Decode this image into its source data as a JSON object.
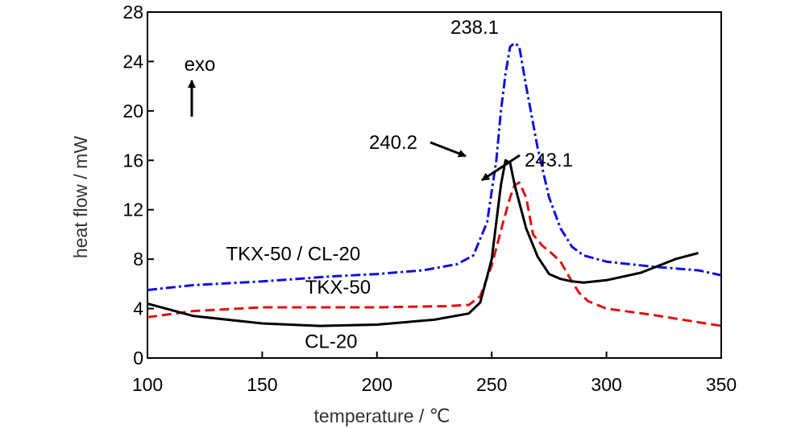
{
  "chart_data": {
    "type": "line",
    "xlabel": "temperature / ℃",
    "ylabel": "heat flow / mW",
    "xlim": [
      100,
      350
    ],
    "ylim": [
      0,
      28
    ],
    "x_ticks": [
      100,
      150,
      200,
      250,
      300,
      350
    ],
    "y_ticks": [
      0,
      4,
      8,
      12,
      16,
      20,
      24,
      28
    ],
    "grid": false,
    "series": [
      {
        "name": "TKX-50 / CL-20",
        "color": "#1010e0",
        "style": "dash-dot",
        "points": [
          [
            100,
            5.5
          ],
          [
            120,
            5.9
          ],
          [
            150,
            6.2
          ],
          [
            180,
            6.6
          ],
          [
            200,
            6.8
          ],
          [
            220,
            7.1
          ],
          [
            235,
            7.6
          ],
          [
            242,
            8.3
          ],
          [
            248,
            11
          ],
          [
            252,
            16
          ],
          [
            254,
            20
          ],
          [
            256,
            23
          ],
          [
            258,
            25.2
          ],
          [
            260,
            25.5
          ],
          [
            262,
            25.2
          ],
          [
            265,
            22
          ],
          [
            270,
            17
          ],
          [
            275,
            13
          ],
          [
            280,
            10.5
          ],
          [
            285,
            9
          ],
          [
            290,
            8.3
          ],
          [
            300,
            7.8
          ],
          [
            320,
            7.4
          ],
          [
            340,
            7.1
          ],
          [
            350,
            6.7
          ]
        ]
      },
      {
        "name": "TKX-50",
        "color": "#e01010",
        "style": "dashed",
        "points": [
          [
            100,
            3.3
          ],
          [
            120,
            3.8
          ],
          [
            150,
            4.1
          ],
          [
            200,
            4.1
          ],
          [
            230,
            4.2
          ],
          [
            240,
            4.3
          ],
          [
            245,
            5
          ],
          [
            250,
            7.5
          ],
          [
            255,
            11
          ],
          [
            258,
            13
          ],
          [
            260,
            14
          ],
          [
            262,
            14.2
          ],
          [
            265,
            13
          ],
          [
            268,
            10
          ],
          [
            272,
            9.1
          ],
          [
            276,
            8.5
          ],
          [
            280,
            7.8
          ],
          [
            284,
            6.5
          ],
          [
            288,
            5.3
          ],
          [
            292,
            4.6
          ],
          [
            300,
            4
          ],
          [
            320,
            3.5
          ],
          [
            340,
            2.9
          ],
          [
            350,
            2.6
          ]
        ]
      },
      {
        "name": "CL-20",
        "color": "#000000",
        "style": "solid",
        "points": [
          [
            100,
            4.4
          ],
          [
            120,
            3.4
          ],
          [
            150,
            2.8
          ],
          [
            175,
            2.6
          ],
          [
            200,
            2.7
          ],
          [
            225,
            3.1
          ],
          [
            240,
            3.6
          ],
          [
            245,
            4.5
          ],
          [
            250,
            8
          ],
          [
            254,
            14
          ],
          [
            256,
            16
          ],
          [
            258,
            15.8
          ],
          [
            260,
            14
          ],
          [
            265,
            10.5
          ],
          [
            270,
            8.2
          ],
          [
            275,
            6.8
          ],
          [
            280,
            6.4
          ],
          [
            285,
            6.2
          ],
          [
            290,
            6.1
          ],
          [
            300,
            6.3
          ],
          [
            315,
            6.9
          ],
          [
            330,
            8
          ],
          [
            340,
            8.5
          ]
        ]
      }
    ],
    "annotations": [
      {
        "text": "238.1",
        "x": 262,
        "y": 26.9
      },
      {
        "text": "240.2",
        "x": 245,
        "y": 17.7
      },
      {
        "text": "243.1",
        "x": 298,
        "y": 16.2
      }
    ],
    "labels": {
      "exo": "exo",
      "series_labels": [
        {
          "text": "TKX-50 / CL-20",
          "x": 163.5,
          "y": 7.9
        },
        {
          "text": "TKX-50",
          "x": 183,
          "y": 5.2
        },
        {
          "text": "CL-20",
          "x": 180,
          "y": 0.8
        }
      ]
    }
  }
}
